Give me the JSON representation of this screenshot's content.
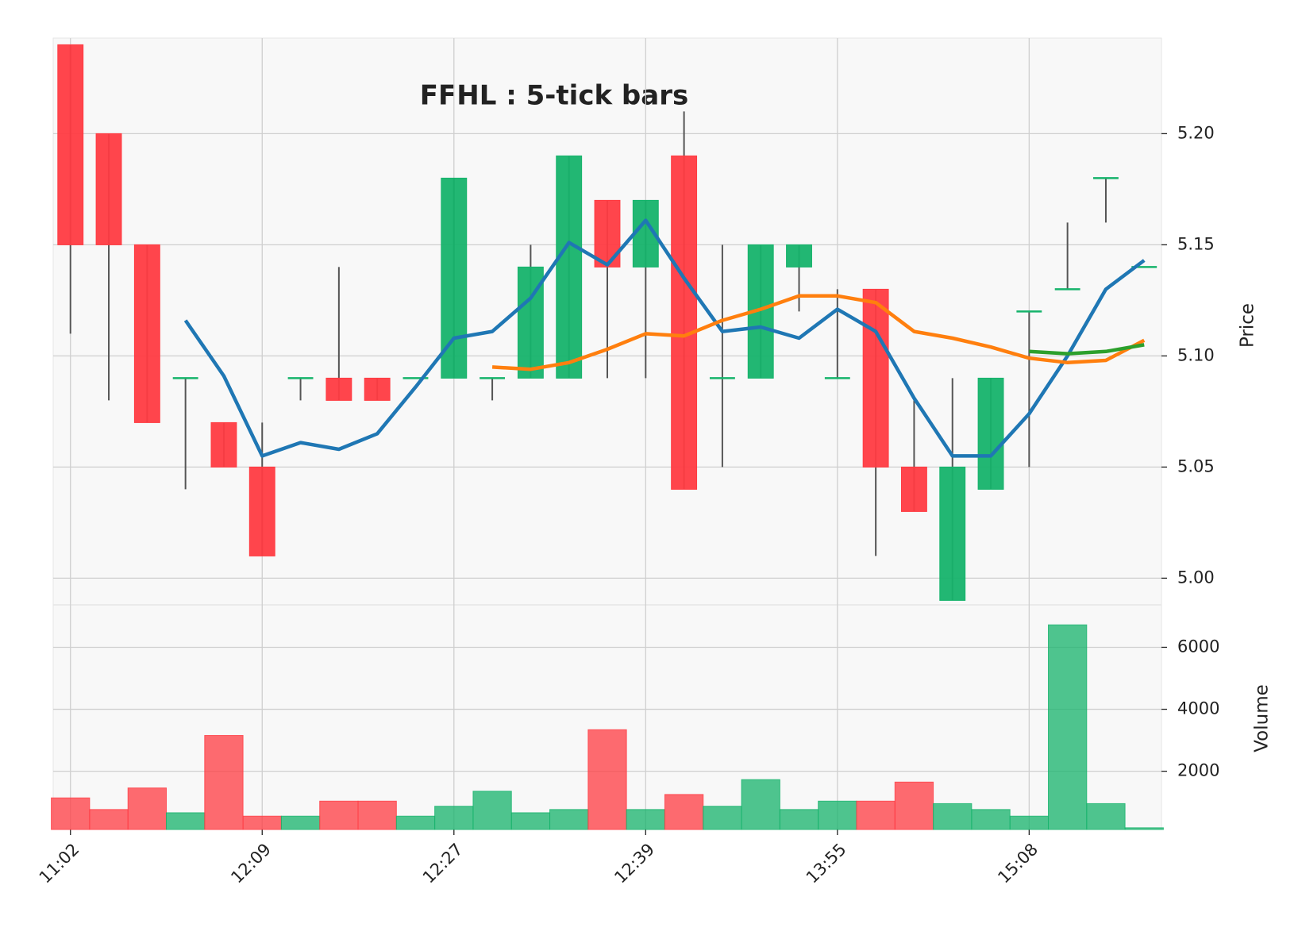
{
  "chart_data": {
    "type": "candlestick",
    "title": "FFHL : 5-tick bars",
    "ylabel": "Price",
    "volume_label": "Volume",
    "categories": [
      "11:02",
      null,
      null,
      null,
      null,
      "12:09",
      null,
      null,
      null,
      null,
      "12:27",
      null,
      null,
      null,
      null,
      "12:39",
      null,
      null,
      null,
      null,
      "13:55",
      null,
      null,
      null,
      null,
      "15:08",
      null,
      null,
      null
    ],
    "open": [
      5.24,
      5.2,
      5.15,
      5.09,
      5.07,
      5.05,
      5.09,
      5.09,
      5.09,
      5.09,
      5.09,
      5.09,
      5.09,
      5.09,
      5.17,
      5.14,
      5.19,
      5.09,
      5.09,
      5.14,
      5.09,
      5.13,
      5.05,
      4.99,
      5.04,
      5.12,
      5.13,
      5.18,
      5.14
    ],
    "high": [
      5.24,
      5.2,
      5.15,
      5.09,
      5.07,
      5.07,
      5.09,
      5.14,
      5.09,
      5.09,
      5.18,
      5.09,
      5.15,
      5.19,
      5.17,
      5.17,
      5.21,
      5.15,
      5.15,
      5.15,
      5.13,
      5.13,
      5.08,
      5.09,
      5.09,
      5.12,
      5.16,
      5.18,
      5.14
    ],
    "low": [
      5.11,
      5.08,
      5.07,
      5.04,
      5.05,
      5.01,
      5.08,
      5.08,
      5.08,
      5.09,
      5.09,
      5.08,
      5.09,
      5.09,
      5.09,
      5.09,
      5.04,
      5.05,
      5.09,
      5.12,
      5.09,
      5.01,
      5.03,
      4.99,
      5.04,
      5.05,
      5.13,
      5.16,
      5.14
    ],
    "close": [
      5.15,
      5.15,
      5.07,
      5.09,
      5.05,
      5.01,
      5.09,
      5.08,
      5.08,
      5.09,
      5.18,
      5.09,
      5.14,
      5.19,
      5.14,
      5.17,
      5.04,
      5.09,
      5.15,
      5.15,
      5.09,
      5.05,
      5.03,
      5.05,
      5.09,
      5.12,
      5.13,
      5.18,
      5.14
    ],
    "volume": [
      1140,
      765,
      1460,
      660,
      3155,
      550,
      550,
      1035,
      1035,
      550,
      870,
      1355,
      660,
      765,
      3340,
      765,
      1250,
      870,
      1730,
      765,
      1035,
      1035,
      1650,
      955,
      765,
      550,
      6725,
      955,
      175
    ],
    "up_color": "#16b36b",
    "down_color": "#ff3b42",
    "series": [
      {
        "color": "#1f77b4",
        "values": [
          null,
          null,
          null,
          5.116,
          5.091,
          5.055,
          5.061,
          5.058,
          5.065,
          5.086,
          5.108,
          5.111,
          5.126,
          5.151,
          5.141,
          5.161,
          5.135,
          5.111,
          5.113,
          5.108,
          5.121,
          5.111,
          5.081,
          5.055,
          5.055,
          5.074,
          5.1,
          5.13,
          5.143
        ]
      },
      {
        "color": "#ff7f0e",
        "values": [
          null,
          null,
          null,
          null,
          null,
          null,
          null,
          null,
          null,
          null,
          null,
          5.095,
          5.094,
          5.097,
          5.103,
          5.11,
          5.109,
          5.116,
          5.121,
          5.127,
          5.127,
          5.124,
          5.111,
          5.108,
          5.104,
          5.099,
          5.097,
          5.098,
          5.107
        ]
      },
      {
        "color": "#2ca02c",
        "values": [
          null,
          null,
          null,
          null,
          null,
          null,
          null,
          null,
          null,
          null,
          null,
          null,
          null,
          null,
          null,
          null,
          null,
          null,
          null,
          null,
          null,
          null,
          null,
          null,
          null,
          5.102,
          5.101,
          5.102,
          5.105
        ]
      }
    ],
    "ylim": [
      4.988,
      5.243
    ],
    "yticks": [
      {
        "value": 5.0,
        "label": "5.00"
      },
      {
        "value": 5.05,
        "label": "5.05"
      },
      {
        "value": 5.1,
        "label": "5.10"
      },
      {
        "value": 5.15,
        "label": "5.15"
      },
      {
        "value": 5.2,
        "label": "5.20"
      }
    ],
    "volume_ylim": [
      120,
      7370
    ],
    "volume_yticks": [
      2000,
      4000,
      6000
    ],
    "grid": true
  }
}
